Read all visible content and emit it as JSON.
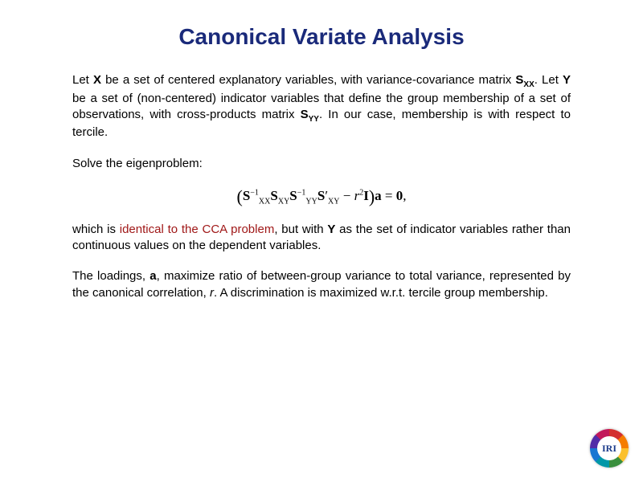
{
  "title": {
    "text": "Canonical Variate Analysis",
    "color": "#1a2a7a",
    "fontsize": 28
  },
  "para1": {
    "pre1": "Let ",
    "X": "X",
    "mid1": " be a set of centered explanatory variables, with variance-covariance matrix ",
    "Sxx": "S",
    "Sxx_sub": "XX",
    "mid2": ". Let ",
    "Y": "Y",
    "mid3": " be a set of (non-centered) indicator variables that define the group membership of a set of observations, with cross-products matrix ",
    "Syy": "S",
    "Syy_sub": "YY",
    "post": ". In our case, membership is with respect to tercile."
  },
  "para2": "Solve the eigenproblem:",
  "equation": {
    "open": "(",
    "S1": "S",
    "S1_sup": "−1",
    "S1_sub": "XX",
    "S2": "S",
    "S2_sub": "XY",
    "S3": "S",
    "S3_sup": "−1",
    "S3_sub": "YY",
    "S4": "S",
    "S4_prime": "′",
    "S4_sub": "XY",
    "minus": " − ",
    "r": "r",
    "r_sup": "2",
    "I": "I",
    "close": ")",
    "a": "a",
    "eq": " = ",
    "zero": "0",
    "comma": ","
  },
  "para3": {
    "pre": "which is ",
    "highlight": "identical to the CCA problem",
    "highlight_color": "#a01818",
    "mid": ", but with ",
    "Y": "Y",
    "post": " as the set of indicator variables rather than continuous values on the dependent variables."
  },
  "para4": {
    "pre": "The loadings, ",
    "a": "a",
    "mid1": ", maximize ratio of between-group variance to total variance, represented by the canonical correlation, ",
    "r": "r",
    "post": ". A discrimination is maximized w.r.t. tercile group membership."
  },
  "logo": {
    "text": "IRI",
    "color": "#1a3a8a"
  },
  "colors": {
    "background": "#ffffff",
    "body_text": "#000000"
  }
}
